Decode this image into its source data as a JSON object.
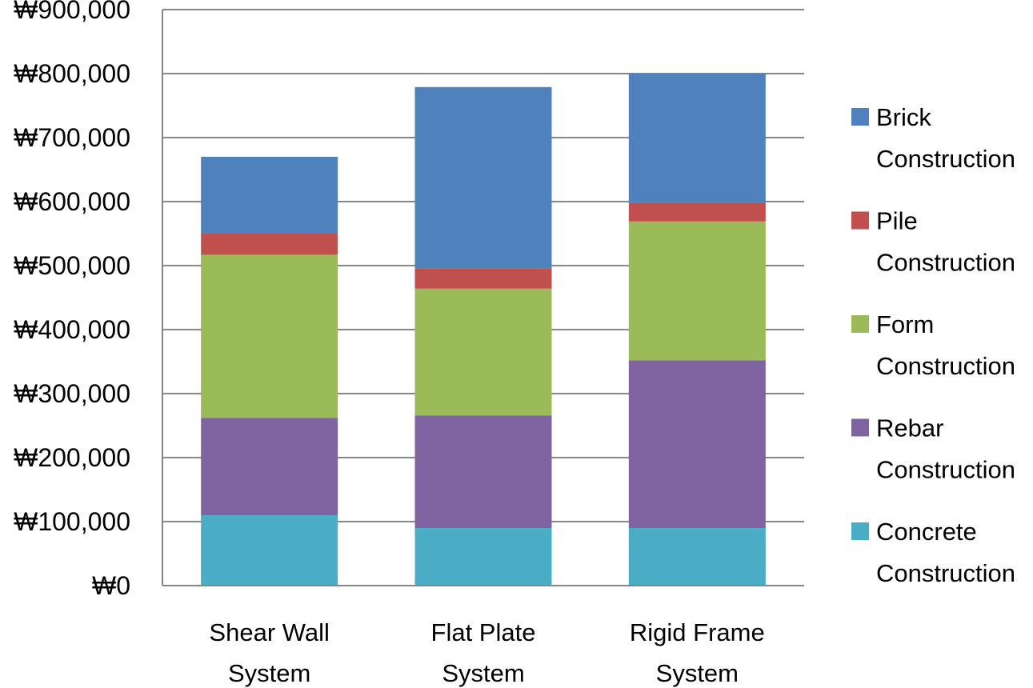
{
  "chart_data": {
    "type": "bar",
    "stacked": true,
    "categories": [
      [
        "Shear Wall",
        "System"
      ],
      [
        "Flat Plate",
        "System"
      ],
      [
        "Rigid Frame",
        "System"
      ]
    ],
    "series": [
      {
        "name": [
          "Concrete",
          "Construction"
        ],
        "color": "#4BACC6",
        "values": [
          110000,
          90000,
          90000
        ]
      },
      {
        "name": [
          "Rebar",
          "Construction"
        ],
        "color": "#8064A2",
        "values": [
          152000,
          176000,
          262000
        ]
      },
      {
        "name": [
          "Form",
          "Construction"
        ],
        "color": "#9BBB59",
        "values": [
          255000,
          198000,
          217000
        ]
      },
      {
        "name": [
          "Pile",
          "Construction"
        ],
        "color": "#C0504D",
        "values": [
          33000,
          32000,
          29000
        ]
      },
      {
        "name": [
          "Brick",
          "Construction"
        ],
        "color": "#4F81BD",
        "values": [
          120000,
          283000,
          202000
        ]
      }
    ],
    "ylim": [
      0,
      900000
    ],
    "yticks": [
      0,
      100000,
      200000,
      300000,
      400000,
      500000,
      600000,
      700000,
      800000,
      900000
    ],
    "ytick_labels": [
      "₩0",
      "₩100,000",
      "₩200,000",
      "₩300,000",
      "₩400,000",
      "₩500,000",
      "₩600,000",
      "₩700,000",
      "₩800,000",
      "₩900,000"
    ],
    "grid": true,
    "legend_position": "right",
    "legend_order": "reversed"
  }
}
